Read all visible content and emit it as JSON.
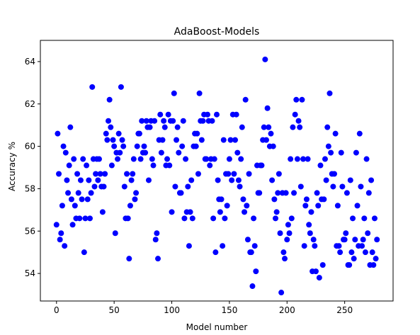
{
  "chart_data": {
    "type": "scatter",
    "title": "AdaBoost-Models",
    "x_label": "Model number",
    "y_label": "Accuracy %",
    "color": "#0000ff",
    "xlim": [
      -14,
      292
    ],
    "ylim": [
      52.7,
      65.0
    ],
    "xticks": [
      0,
      50,
      100,
      150,
      200,
      250
    ],
    "yticks": [
      54,
      56,
      58,
      60,
      62,
      64
    ],
    "x": [
      0,
      1,
      2,
      3,
      4,
      5,
      6,
      7,
      8,
      9,
      10,
      11,
      12,
      13,
      14,
      15,
      16,
      17,
      18,
      19,
      20,
      21,
      22,
      23,
      24,
      25,
      26,
      27,
      28,
      29,
      30,
      31,
      32,
      33,
      34,
      35,
      36,
      37,
      38,
      39,
      40,
      41,
      42,
      43,
      44,
      45,
      46,
      47,
      48,
      49,
      50,
      51,
      52,
      53,
      54,
      55,
      56,
      57,
      58,
      59,
      60,
      61,
      62,
      63,
      64,
      65,
      66,
      67,
      68,
      69,
      70,
      71,
      72,
      73,
      74,
      75,
      76,
      77,
      78,
      79,
      80,
      81,
      82,
      83,
      84,
      85,
      86,
      87,
      88,
      89,
      90,
      91,
      92,
      93,
      94,
      95,
      96,
      97,
      98,
      99,
      100,
      101,
      102,
      103,
      104,
      105,
      106,
      107,
      108,
      109,
      110,
      111,
      112,
      113,
      114,
      115,
      116,
      117,
      118,
      119,
      120,
      121,
      122,
      123,
      124,
      125,
      126,
      127,
      128,
      129,
      130,
      131,
      132,
      133,
      134,
      135,
      136,
      137,
      138,
      139,
      140,
      141,
      142,
      143,
      144,
      145,
      146,
      147,
      148,
      149,
      150,
      151,
      152,
      153,
      154,
      155,
      156,
      157,
      158,
      159,
      160,
      161,
      162,
      163,
      164,
      165,
      166,
      167,
      168,
      169,
      170,
      171,
      172,
      173,
      174,
      175,
      176,
      177,
      178,
      179,
      180,
      181,
      182,
      183,
      184,
      185,
      186,
      187,
      188,
      189,
      190,
      191,
      192,
      193,
      194,
      195,
      196,
      197,
      198,
      199,
      200,
      201,
      202,
      203,
      204,
      205,
      206,
      207,
      208,
      209,
      210,
      211,
      212,
      213,
      214,
      215,
      216,
      217,
      218,
      219,
      220,
      221,
      222,
      223,
      224,
      225,
      226,
      227,
      228,
      229,
      230,
      231,
      232,
      233,
      234,
      235,
      236,
      237,
      238,
      239,
      240,
      241,
      242,
      243,
      244,
      245,
      246,
      247,
      248,
      249,
      250,
      251,
      252,
      253,
      254,
      255,
      256,
      257,
      258,
      259,
      260,
      261,
      262,
      263,
      264,
      265,
      266,
      267,
      268,
      269,
      270,
      271,
      272,
      273,
      274,
      275,
      276,
      277,
      278
    ],
    "values": [
      56.3,
      60.6,
      58.7,
      55.6,
      55.9,
      57.2,
      60.0,
      55.3,
      59.7,
      58.4,
      57.8,
      59.1,
      60.9,
      57.5,
      56.3,
      59.4,
      57.2,
      56.6,
      58.7,
      57.8,
      56.6,
      58.4,
      57.5,
      59.4,
      55.0,
      56.6,
      59.1,
      57.5,
      58.4,
      56.6,
      57.8,
      62.8,
      59.4,
      58.1,
      58.7,
      59.4,
      58.4,
      59.4,
      58.7,
      58.1,
      56.9,
      58.1,
      58.7,
      60.6,
      60.3,
      61.2,
      62.2,
      60.9,
      59.1,
      60.3,
      60.0,
      55.9,
      59.7,
      59.4,
      60.6,
      59.7,
      62.8,
      60.3,
      60.0,
      58.1,
      56.6,
      58.7,
      56.6,
      54.7,
      57.2,
      58.4,
      58.7,
      59.4,
      57.5,
      57.8,
      60.0,
      60.6,
      60.6,
      59.4,
      61.2,
      59.7,
      60.0,
      59.7,
      61.2,
      60.9,
      58.4,
      60.9,
      61.2,
      59.4,
      59.1,
      61.2,
      55.6,
      55.9,
      54.7,
      60.3,
      61.5,
      59.7,
      60.3,
      61.2,
      60.9,
      59.1,
      59.4,
      61.5,
      59.1,
      61.2,
      56.9,
      61.2,
      62.5,
      58.1,
      60.3,
      60.9,
      59.7,
      57.8,
      57.8,
      60.0,
      61.2,
      56.6,
      59.4,
      56.9,
      58.1,
      55.3,
      56.9,
      58.4,
      56.6,
      60.0,
      60.6,
      60.0,
      60.6,
      58.7,
      62.5,
      61.2,
      60.3,
      61.2,
      61.5,
      59.4,
      59.4,
      61.5,
      61.2,
      59.1,
      59.4,
      61.2,
      56.6,
      59.4,
      55.0,
      61.5,
      58.4,
      57.5,
      56.9,
      57.5,
      55.3,
      60.3,
      56.6,
      58.7,
      57.2,
      58.7,
      59.4,
      60.3,
      58.4,
      61.5,
      58.7,
      60.3,
      61.5,
      59.7,
      58.4,
      58.1,
      59.4,
      60.9,
      57.5,
      56.9,
      62.2,
      57.2,
      55.6,
      58.7,
      55.0,
      55.0,
      53.4,
      56.6,
      55.3,
      54.1,
      59.1,
      57.8,
      57.8,
      59.1,
      59.1,
      60.3,
      60.9,
      64.1,
      60.3,
      61.8,
      60.9,
      60.0,
      60.6,
      58.4,
      60.0,
      57.5,
      56.6,
      56.9,
      57.8,
      58.7,
      55.9,
      53.1,
      57.8,
      55.0,
      54.7,
      57.8,
      55.6,
      56.3,
      55.9,
      59.4,
      56.6,
      60.9,
      57.8,
      61.5,
      62.2,
      59.4,
      61.2,
      60.9,
      58.1,
      62.2,
      59.4,
      55.3,
      57.2,
      57.5,
      59.4,
      56.3,
      55.9,
      56.9,
      54.1,
      55.6,
      55.3,
      54.1,
      57.8,
      57.2,
      53.8,
      59.1,
      57.5,
      54.4,
      57.5,
      59.4,
      58.4,
      60.9,
      60.0,
      62.5,
      59.7,
      58.7,
      58.1,
      58.7,
      60.6,
      55.3,
      57.2,
      55.3,
      55.0,
      59.7,
      58.1,
      55.6,
      55.6,
      55.9,
      57.8,
      54.4,
      54.4,
      58.4,
      55.0,
      56.6,
      54.7,
      55.6,
      59.7,
      57.2,
      55.3,
      60.6,
      58.1,
      55.3,
      55.6,
      56.6,
      55.0,
      59.4,
      55.9,
      57.8,
      54.4,
      58.4,
      55.0,
      54.4,
      56.6,
      54.7,
      55.6
    ]
  }
}
